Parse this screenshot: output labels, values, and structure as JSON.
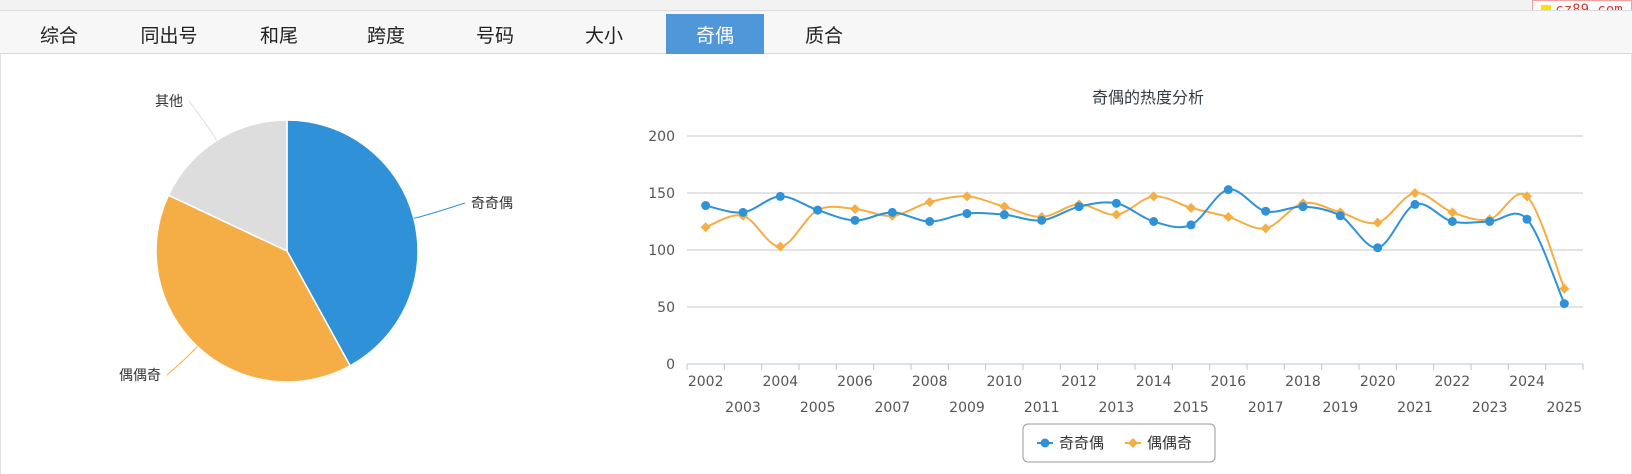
{
  "watermark": "cz89.com",
  "tabs": [
    "综合",
    "同出号",
    "和尾",
    "跨度",
    "号码",
    "大小",
    "奇偶",
    "质合"
  ],
  "active_tab_index": 6,
  "colors": {
    "tab_active": "#4f97d9",
    "series_1": "#2f91d8",
    "series_2": "#f5ae45",
    "other": "#dddddd"
  },
  "chart_data": [
    {
      "type": "pie",
      "slices": [
        {
          "label": "奇奇偶",
          "value": 42,
          "color": "#2f91d8"
        },
        {
          "label": "偶偶奇",
          "value": 40,
          "color": "#f5ae45"
        },
        {
          "label": "其他",
          "value": 18,
          "color": "#dddddd"
        }
      ]
    },
    {
      "type": "line",
      "title": "奇偶的热度分析",
      "x": [
        "2002",
        "2003",
        "2004",
        "2005",
        "2006",
        "2007",
        "2008",
        "2009",
        "2010",
        "2011",
        "2012",
        "2013",
        "2014",
        "2015",
        "2016",
        "2017",
        "2018",
        "2019",
        "2020",
        "2021",
        "2022",
        "2023",
        "2024",
        "2025"
      ],
      "ylim": [
        0,
        200
      ],
      "yticks": [
        0,
        50,
        100,
        150,
        200
      ],
      "grid": true,
      "legend": "bottom-center",
      "series": [
        {
          "name": "奇奇偶",
          "color": "#2f91d8",
          "marker": "circle",
          "values": [
            139,
            133,
            147,
            135,
            126,
            133,
            125,
            132,
            131,
            126,
            138,
            141,
            125,
            122,
            153,
            134,
            138,
            130,
            102,
            140,
            125,
            125,
            127,
            53
          ]
        },
        {
          "name": "偶偶奇",
          "color": "#f5ae45",
          "marker": "diamond",
          "values": [
            120,
            130,
            103,
            135,
            136,
            130,
            142,
            147,
            138,
            129,
            140,
            131,
            147,
            137,
            129,
            119,
            141,
            133,
            124,
            150,
            133,
            127,
            147,
            66
          ]
        }
      ]
    }
  ]
}
